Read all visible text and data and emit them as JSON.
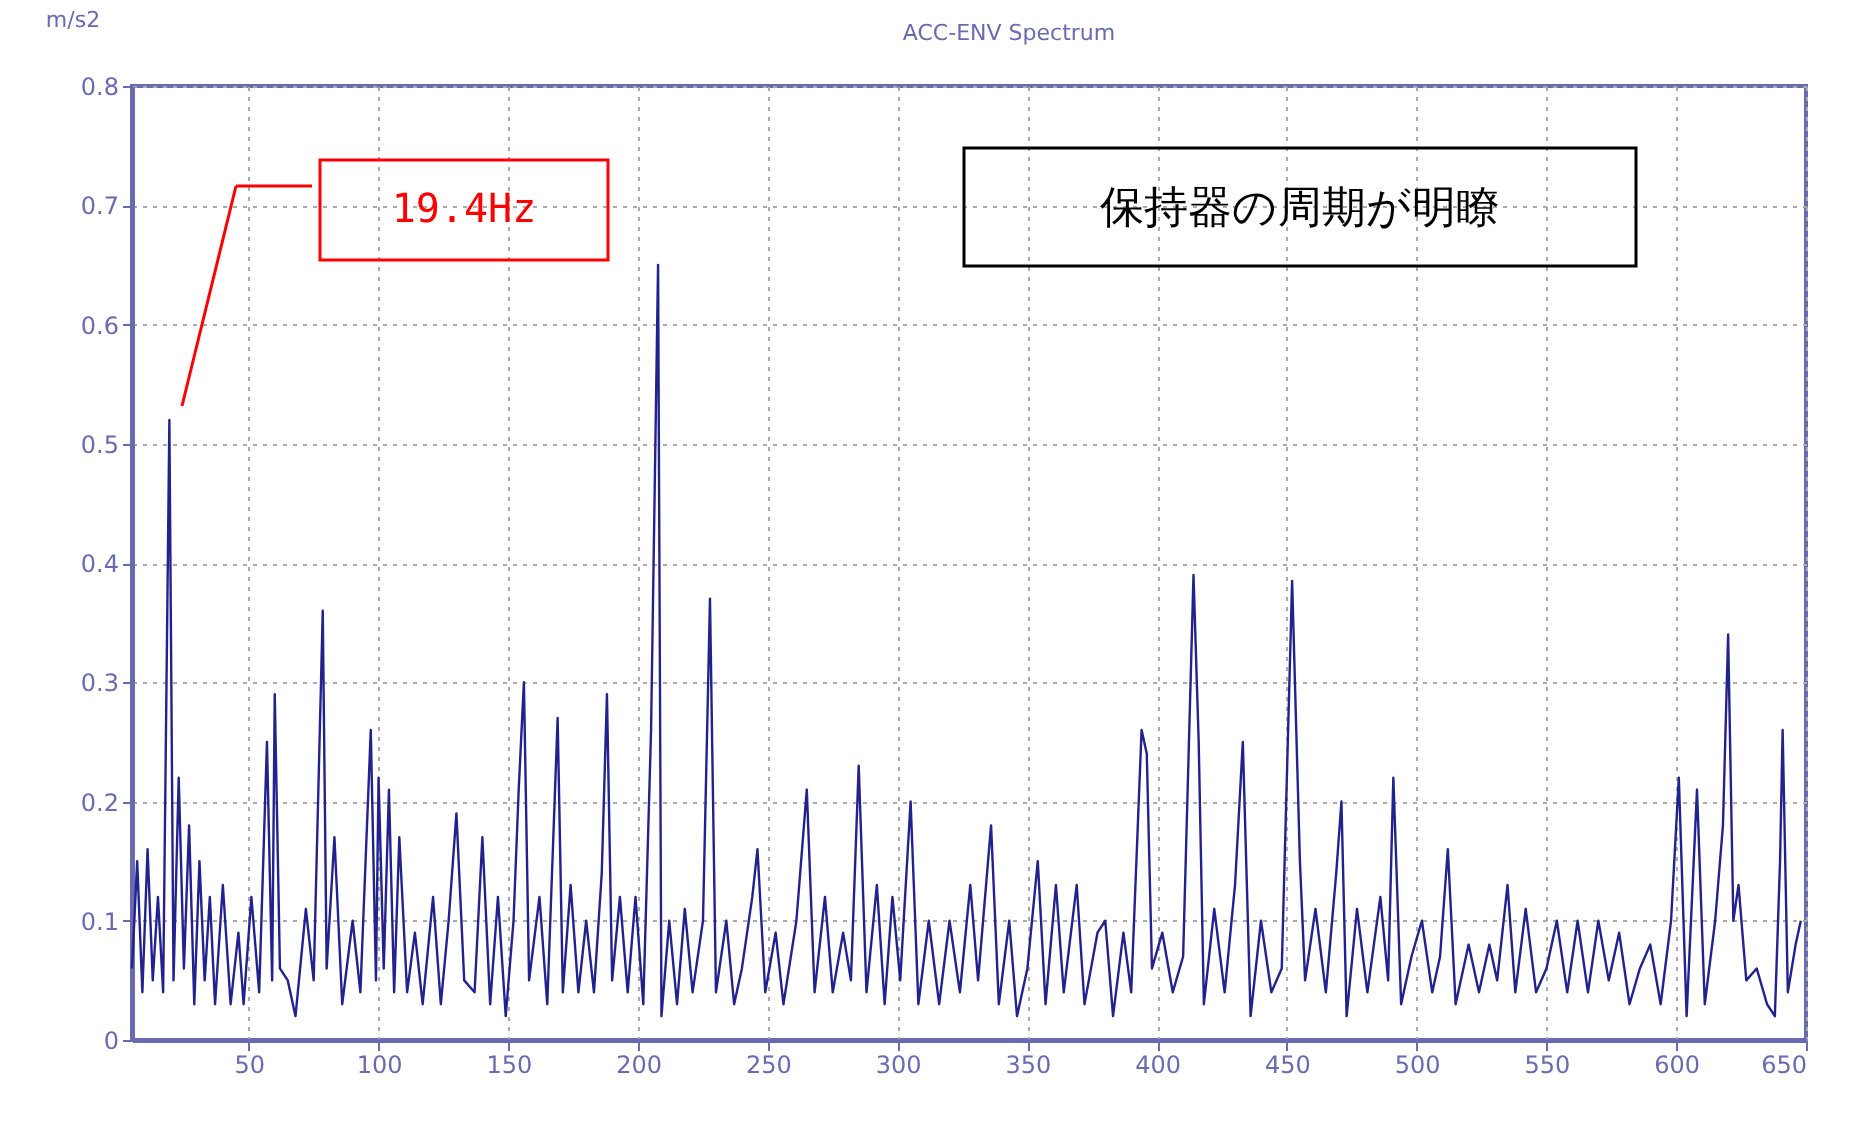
{
  "chart_data": {
    "type": "line",
    "title": "ACC-ENV Spectrum",
    "ylabel": "m/s2",
    "xlim": [
      5,
      650
    ],
    "xticks": [
      50,
      100,
      150,
      200,
      250,
      300,
      350,
      400,
      450,
      500,
      550,
      600,
      650
    ],
    "ylim": [
      0,
      0.8
    ],
    "yticks": [
      0,
      0.1,
      0.2,
      0.3,
      0.4,
      0.5,
      0.6,
      0.7,
      0.8
    ],
    "grid": true,
    "line_style": "solid",
    "marker": "none",
    "annotations": [
      "19.4Hz",
      "保持器の周期が明瞭"
    ],
    "series": [
      {
        "color": "#22228f",
        "x": [
          5,
          7,
          9,
          11,
          13,
          15,
          17,
          19.4,
          21,
          23,
          25,
          27,
          29,
          31,
          33,
          35,
          37,
          40,
          43,
          46,
          48,
          51,
          54,
          57,
          59,
          60,
          62,
          65,
          68,
          72,
          75,
          78.5,
          80,
          83,
          86,
          90,
          93,
          97,
          99,
          100,
          102,
          104,
          106,
          108,
          111,
          114,
          117,
          121,
          124,
          127,
          130,
          133,
          137,
          140,
          143,
          146,
          149,
          152,
          154,
          156,
          158,
          162,
          165,
          169,
          171,
          174,
          177,
          180,
          183,
          186,
          188,
          190,
          193,
          196,
          199,
          202,
          205,
          207.7,
          209,
          212,
          215,
          218,
          221,
          225,
          227.7,
          230,
          234,
          237,
          240,
          244,
          246,
          249,
          253,
          256,
          261,
          265,
          268,
          272,
          275,
          279,
          282,
          285,
          288,
          292,
          295,
          298,
          301,
          305,
          308,
          312,
          316,
          320,
          324,
          328,
          331,
          336,
          339,
          343,
          346,
          350,
          354,
          357,
          361,
          364,
          369,
          372,
          377,
          380,
          383,
          387,
          390,
          394,
          396,
          398,
          402,
          406,
          410,
          414,
          416,
          418,
          422,
          426,
          430,
          433,
          436,
          440,
          444,
          448,
          452,
          455,
          457,
          461,
          465,
          469,
          471,
          473,
          477,
          481,
          486,
          489,
          491,
          494,
          498,
          502,
          506,
          509,
          512,
          515,
          520,
          524,
          528,
          531,
          535,
          538,
          542,
          546,
          550,
          554,
          558,
          562,
          566,
          570,
          574,
          578,
          582,
          586,
          590,
          594,
          598,
          601,
          604,
          608,
          611,
          615,
          618,
          620,
          622,
          624,
          627,
          631,
          635,
          638,
          640,
          641,
          643,
          646,
          648
        ],
        "values": [
          0.06,
          0.15,
          0.04,
          0.16,
          0.05,
          0.12,
          0.04,
          0.52,
          0.05,
          0.22,
          0.06,
          0.18,
          0.03,
          0.15,
          0.05,
          0.12,
          0.03,
          0.13,
          0.03,
          0.09,
          0.03,
          0.12,
          0.04,
          0.25,
          0.05,
          0.29,
          0.06,
          0.05,
          0.02,
          0.11,
          0.05,
          0.36,
          0.06,
          0.17,
          0.03,
          0.1,
          0.04,
          0.26,
          0.05,
          0.22,
          0.06,
          0.21,
          0.04,
          0.17,
          0.04,
          0.09,
          0.03,
          0.12,
          0.03,
          0.1,
          0.19,
          0.05,
          0.04,
          0.17,
          0.03,
          0.12,
          0.02,
          0.1,
          0.21,
          0.3,
          0.05,
          0.12,
          0.03,
          0.27,
          0.04,
          0.13,
          0.04,
          0.1,
          0.04,
          0.14,
          0.29,
          0.05,
          0.12,
          0.04,
          0.12,
          0.03,
          0.26,
          0.65,
          0.02,
          0.1,
          0.03,
          0.11,
          0.04,
          0.1,
          0.37,
          0.04,
          0.1,
          0.03,
          0.06,
          0.12,
          0.16,
          0.04,
          0.09,
          0.03,
          0.1,
          0.21,
          0.04,
          0.12,
          0.04,
          0.09,
          0.05,
          0.23,
          0.04,
          0.13,
          0.03,
          0.12,
          0.05,
          0.2,
          0.03,
          0.1,
          0.03,
          0.1,
          0.04,
          0.13,
          0.05,
          0.18,
          0.03,
          0.1,
          0.02,
          0.06,
          0.15,
          0.03,
          0.13,
          0.04,
          0.13,
          0.03,
          0.09,
          0.1,
          0.02,
          0.09,
          0.04,
          0.26,
          0.24,
          0.06,
          0.09,
          0.04,
          0.07,
          0.39,
          0.25,
          0.03,
          0.11,
          0.04,
          0.13,
          0.25,
          0.02,
          0.1,
          0.04,
          0.06,
          0.385,
          0.15,
          0.05,
          0.11,
          0.04,
          0.14,
          0.2,
          0.02,
          0.11,
          0.04,
          0.12,
          0.05,
          0.22,
          0.03,
          0.07,
          0.1,
          0.04,
          0.07,
          0.16,
          0.03,
          0.08,
          0.04,
          0.08,
          0.05,
          0.13,
          0.04,
          0.11,
          0.04,
          0.06,
          0.1,
          0.04,
          0.1,
          0.04,
          0.1,
          0.05,
          0.09,
          0.03,
          0.06,
          0.08,
          0.03,
          0.1,
          0.22,
          0.02,
          0.21,
          0.03,
          0.1,
          0.18,
          0.34,
          0.1,
          0.13,
          0.05,
          0.06,
          0.03,
          0.02,
          0.15,
          0.26,
          0.04,
          0.08,
          0.1
        ]
      }
    ]
  }
}
